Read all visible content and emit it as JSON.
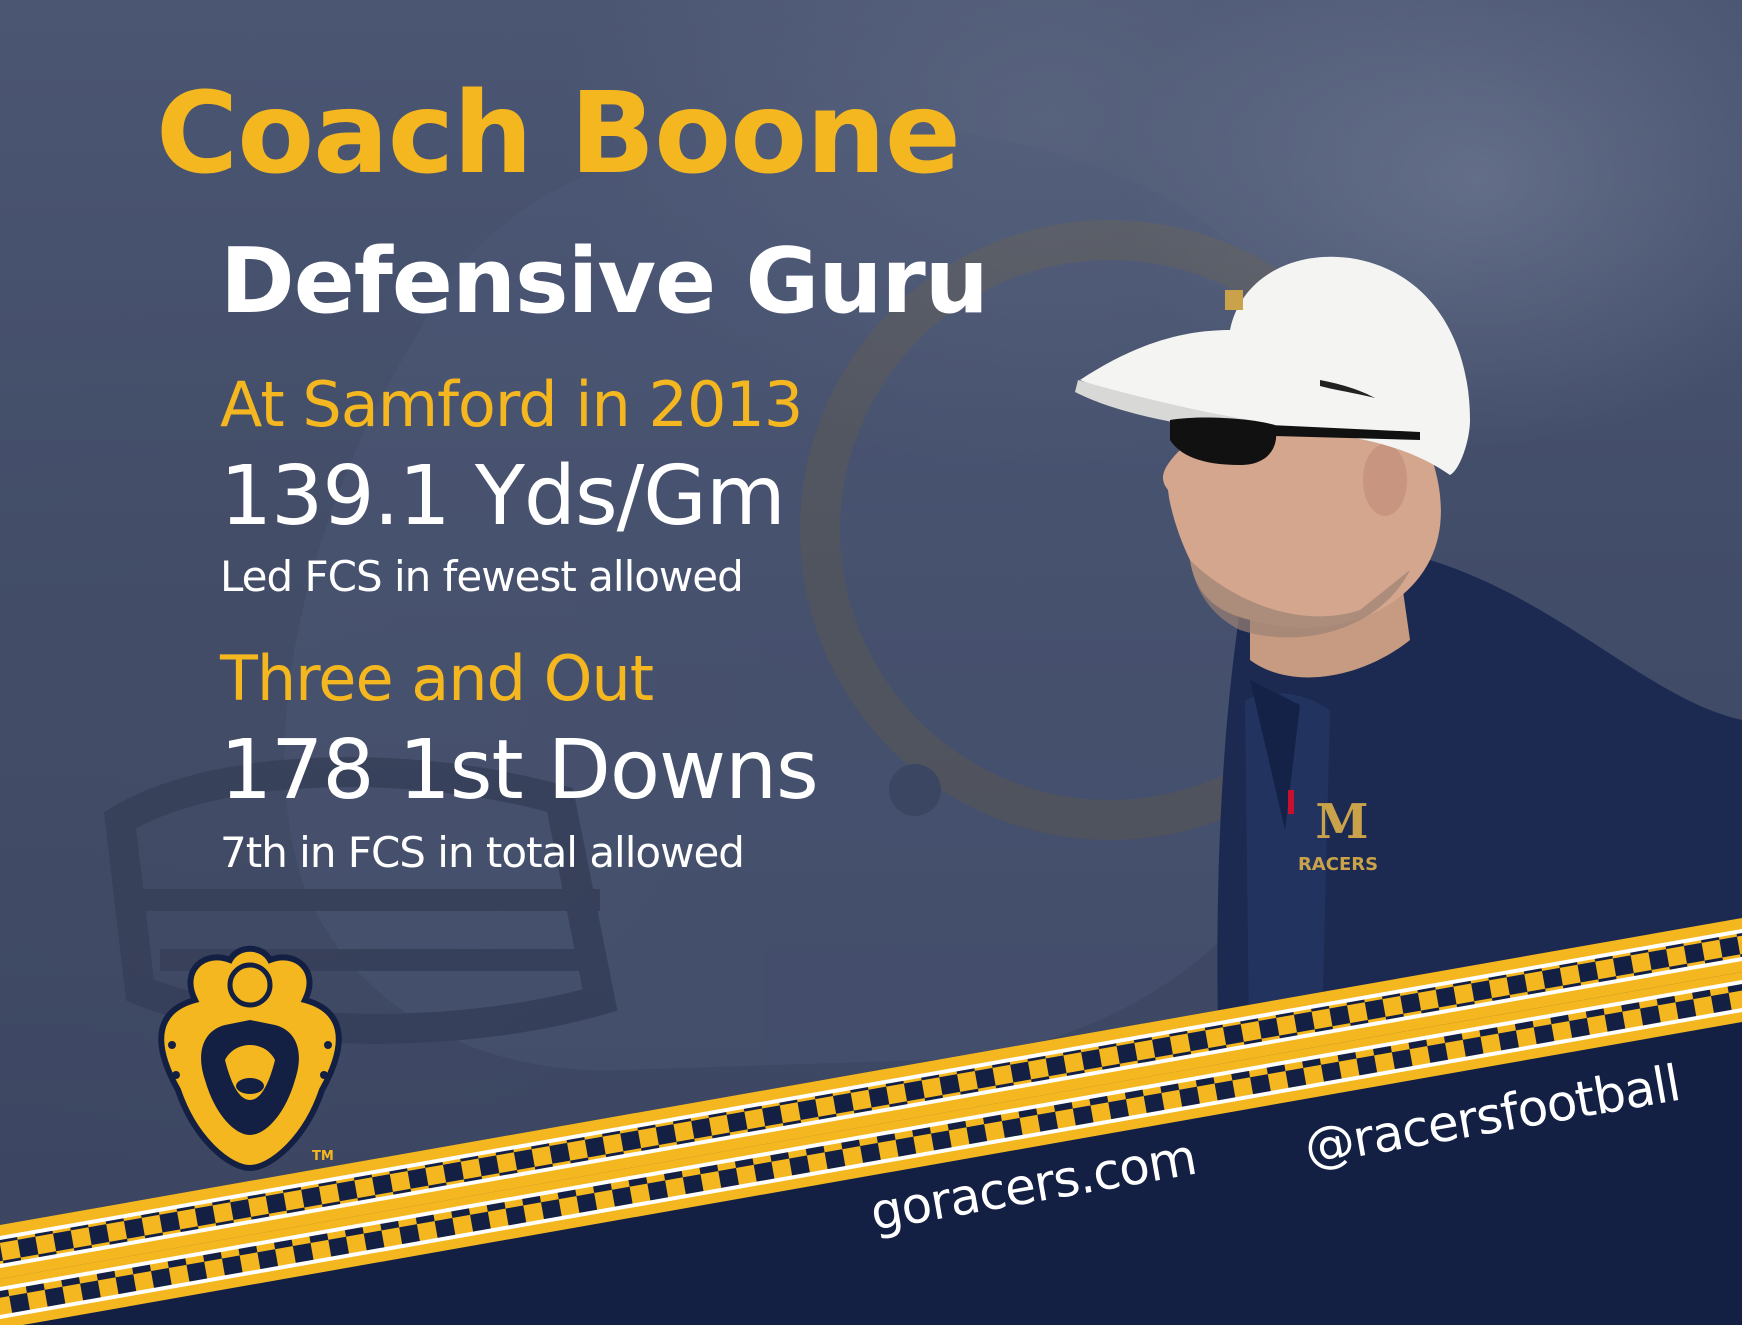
{
  "headline": {
    "name": "Coach Boone",
    "title": "Defensive Guru"
  },
  "stats": [
    {
      "label": "At Samford in 2013",
      "value": "139.1 Yds/Gm",
      "note": "Led FCS in fewest allowed"
    },
    {
      "label": "Three and Out",
      "value": "178 1st Downs",
      "note": "7th in FCS in total allowed"
    }
  ],
  "footer": {
    "website": "goracers.com",
    "social": "@racersfootball"
  },
  "logo": {
    "name": "racers-horseshoe-logo",
    "trademark": "TM"
  },
  "jacket_logo": {
    "letter": "M",
    "text": "RACERS"
  },
  "colors": {
    "gold": "#f5b71f",
    "navy": "#132043",
    "white": "#ffffff",
    "background": "#3e4a68"
  }
}
